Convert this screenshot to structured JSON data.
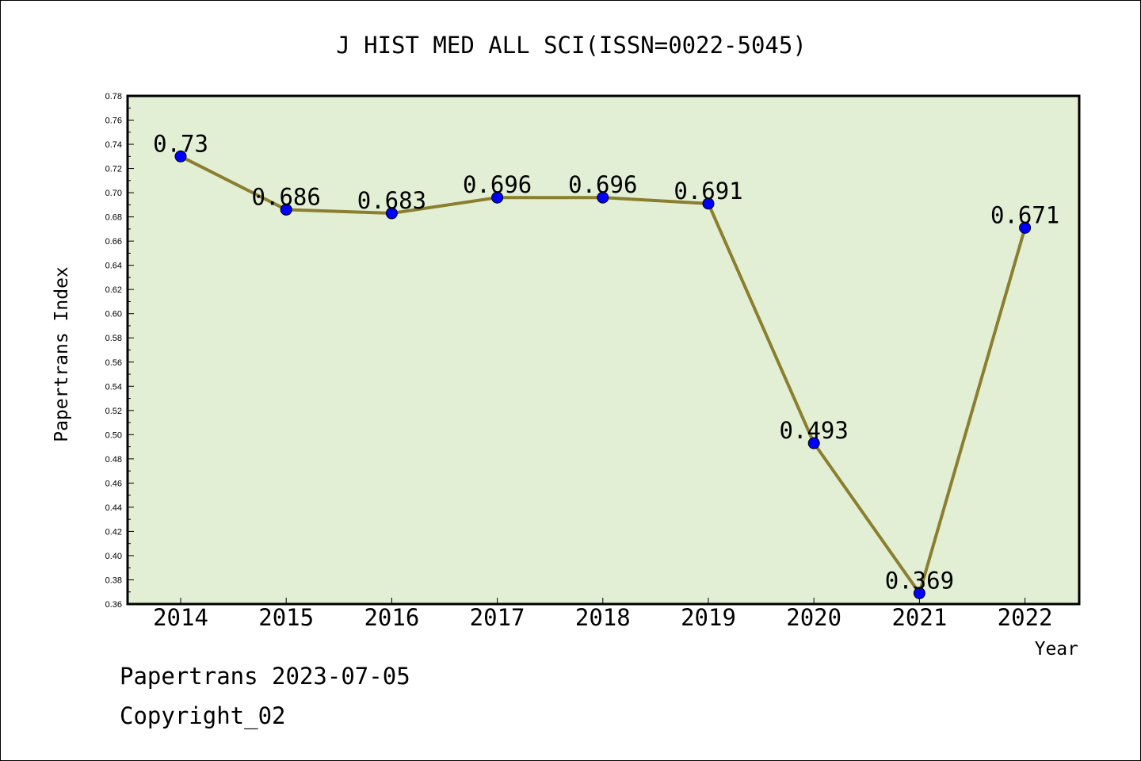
{
  "chart_data": {
    "type": "line",
    "title": "J HIST MED ALL SCI(ISSN=0022-5045)",
    "xlabel": "Year",
    "ylabel": "Papertrans Index",
    "categories": [
      "2014",
      "2015",
      "2016",
      "2017",
      "2018",
      "2019",
      "2020",
      "2021",
      "2022"
    ],
    "values": [
      0.73,
      0.686,
      0.683,
      0.696,
      0.696,
      0.691,
      0.493,
      0.369,
      0.671
    ],
    "data_labels": [
      "0.73",
      "0.686",
      "0.683",
      "0.696",
      "0.696",
      "0.691",
      "0.493",
      "0.369",
      "0.671"
    ],
    "ylim": [
      0.36,
      0.78
    ],
    "yticks": [
      "0.36",
      "0.38",
      "0.40",
      "0.42",
      "0.44",
      "0.46",
      "0.48",
      "0.50",
      "0.52",
      "0.54",
      "0.56",
      "0.58",
      "0.60",
      "0.62",
      "0.64",
      "0.66",
      "0.68",
      "0.70",
      "0.72",
      "0.74",
      "0.76",
      "0.78"
    ],
    "grid": false,
    "colors": {
      "plot_background": "#e2efd5",
      "line": "#8b7f2f",
      "marker": "#0000ff"
    }
  },
  "footer": {
    "line1": "Papertrans 2023-07-05",
    "line2": "Copyright_02"
  }
}
